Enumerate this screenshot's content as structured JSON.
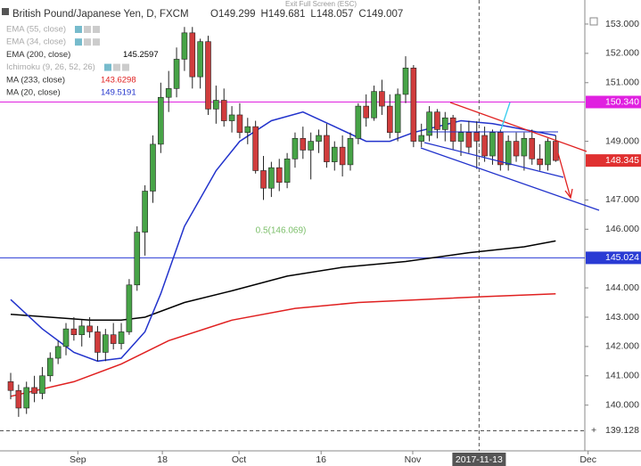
{
  "chart_data": {
    "type": "candlestick",
    "title": "British Pound/Japanese Yen, D, FXCM",
    "ohlc_header": [
      {
        "label": "O",
        "value": "149.299"
      },
      {
        "label": "H",
        "value": "149.681"
      },
      {
        "label": "L",
        "value": "148.057"
      },
      {
        "label": "C",
        "value": "149.007"
      }
    ],
    "exit_text": "Exit Full Screen (ESC)",
    "categories": [
      null,
      null,
      null,
      null,
      null,
      null,
      null,
      null,
      null,
      null,
      null,
      null,
      null,
      null,
      null,
      null,
      null,
      null,
      null,
      null,
      null,
      null,
      null,
      null,
      null,
      null,
      null,
      null,
      null,
      null,
      null,
      null,
      null,
      null,
      null,
      null,
      null,
      null,
      null,
      null,
      null,
      null,
      null,
      null,
      null,
      null,
      null,
      null,
      null,
      null,
      null,
      null,
      null,
      null,
      null,
      null,
      null,
      null,
      null,
      null,
      null,
      null,
      null,
      null,
      null,
      null,
      null,
      null,
      null,
      null
    ],
    "open": [
      140.8,
      140.5,
      139.9,
      140.6,
      140.4,
      141.0,
      141.6,
      142.0,
      142.6,
      142.4,
      142.7,
      142.5,
      141.8,
      142.4,
      142.1,
      142.5,
      144.1,
      145.9,
      147.3,
      148.9,
      150.5,
      150.8,
      151.8,
      152.7,
      151.2,
      152.4,
      150.1,
      150.4,
      149.7,
      149.9,
      149.3,
      149.5,
      148.0,
      147.4,
      148.1,
      147.6,
      148.4,
      149.1,
      148.7,
      149.0,
      149.2,
      148.3,
      148.8,
      148.2,
      149.1,
      150.2,
      149.8,
      150.7,
      150.2,
      149.3,
      150.6,
      151.5,
      149.0,
      149.2,
      150.0,
      149.4,
      149.8,
      149.0,
      149.3,
      149.299,
      149.2,
      148.5,
      149.3,
      148.2,
      149.0,
      148.5,
      149.1,
      148.4,
      148.2,
      149.0
    ],
    "high": [
      141.1,
      140.7,
      140.8,
      141.0,
      141.3,
      141.8,
      142.2,
      142.8,
      143.0,
      142.9,
      143.0,
      142.7,
      142.6,
      142.8,
      142.8,
      144.3,
      146.1,
      147.5,
      149.2,
      151.0,
      151.4,
      152.2,
      152.9,
      152.9,
      152.5,
      152.6,
      150.9,
      150.8,
      150.2,
      150.3,
      149.8,
      149.7,
      148.5,
      148.3,
      148.4,
      148.6,
      149.3,
      149.5,
      149.3,
      149.4,
      149.6,
      149.0,
      149.2,
      149.3,
      150.3,
      150.6,
      150.9,
      151.1,
      150.6,
      150.8,
      151.9,
      151.6,
      149.6,
      150.2,
      150.1,
      150.0,
      149.9,
      149.6,
      149.7,
      149.681,
      149.5,
      149.4,
      149.4,
      149.2,
      149.3,
      149.3,
      149.4,
      148.9,
      149.1,
      149.2
    ],
    "low": [
      140.2,
      139.6,
      139.7,
      140.1,
      140.2,
      140.8,
      141.4,
      141.7,
      142.2,
      142.0,
      142.3,
      141.5,
      141.5,
      141.9,
      141.9,
      142.4,
      143.9,
      145.1,
      146.9,
      148.6,
      150.0,
      150.5,
      151.4,
      150.8,
      150.8,
      149.9,
      149.6,
      149.5,
      149.3,
      149.1,
      148.9,
      147.9,
      147.0,
      147.1,
      147.3,
      147.4,
      148.1,
      148.4,
      147.7,
      148.6,
      148.1,
      148.0,
      147.8,
      148.0,
      148.9,
      149.5,
      149.7,
      149.9,
      149.1,
      149.0,
      150.3,
      148.8,
      148.8,
      149.0,
      149.1,
      149.0,
      148.7,
      148.5,
      148.6,
      148.057,
      148.3,
      148.2,
      148.0,
      148.0,
      148.3,
      148.0,
      148.2,
      148.0,
      148.0,
      148.3
    ],
    "close": [
      140.5,
      139.9,
      140.6,
      140.4,
      141.0,
      141.6,
      142.0,
      142.6,
      142.4,
      142.7,
      142.5,
      141.8,
      142.4,
      142.1,
      142.5,
      144.1,
      145.9,
      147.3,
      148.9,
      150.5,
      150.8,
      151.8,
      152.7,
      151.2,
      152.4,
      150.1,
      150.4,
      149.7,
      149.9,
      149.3,
      149.5,
      148.0,
      147.4,
      148.1,
      147.6,
      148.4,
      149.1,
      148.7,
      149.0,
      149.2,
      148.3,
      148.8,
      148.2,
      149.1,
      150.2,
      149.8,
      150.7,
      150.2,
      149.3,
      150.6,
      151.5,
      149.0,
      149.2,
      150.0,
      149.4,
      149.8,
      149.0,
      149.3,
      148.8,
      149.007,
      148.5,
      149.3,
      148.2,
      149.0,
      148.5,
      149.1,
      148.4,
      148.2,
      149.0,
      148.345
    ],
    "up_color": "#47a447",
    "down_color": "#d03c3c",
    "series": [
      {
        "name": "EMA (55, close)"
      },
      {
        "name": "EMA (34, close)"
      },
      {
        "name": "EMA (200, close)",
        "value_label": "145.2597",
        "color": "#000000",
        "x": [
          0,
          5,
          10,
          14,
          17,
          22,
          28,
          35,
          42,
          50,
          58,
          65,
          69
        ],
        "values": [
          143.1,
          143.0,
          142.9,
          142.9,
          143.0,
          143.5,
          143.9,
          144.4,
          144.7,
          144.9,
          145.2,
          145.4,
          145.6
        ]
      },
      {
        "name": "Ichimoku (9, 26, 52, 26)"
      },
      {
        "name": "MA (233, close)",
        "value_label": "143.6298",
        "color": "#e02020",
        "x": [
          0,
          8,
          14,
          20,
          28,
          36,
          44,
          52,
          60,
          69
        ],
        "values": [
          140.3,
          140.8,
          141.4,
          142.2,
          142.9,
          143.3,
          143.5,
          143.6,
          143.7,
          143.8
        ]
      },
      {
        "name": "MA (20, close)",
        "value_label": "149.5191",
        "color": "#2233cc",
        "x": [
          0,
          4,
          8,
          11,
          14,
          17,
          19,
          22,
          26,
          29,
          33,
          37,
          41,
          45,
          48,
          51,
          54,
          57,
          61,
          65,
          69
        ],
        "values": [
          143.6,
          142.6,
          141.8,
          141.5,
          141.6,
          142.5,
          143.8,
          146.1,
          148.0,
          149.0,
          149.7,
          150.0,
          149.5,
          149.0,
          149.0,
          149.3,
          149.5,
          149.7,
          149.6,
          149.4,
          149.2
        ]
      }
    ],
    "hlines": [
      {
        "value": 150.34,
        "label": "150.340",
        "color": "#e020e0"
      },
      {
        "value": 145.024,
        "label": "145.024",
        "color": "#2a3bd4"
      },
      {
        "value": 139.128,
        "label": "139.128",
        "color": "#444444",
        "dashed": true
      }
    ],
    "last_price": {
      "value": 148.345,
      "label": "148.345",
      "color": "#e03030"
    },
    "annotation": "0.5(146.069)",
    "crosshair": {
      "x": 59.3,
      "label": "2017-11-13"
    },
    "ylim": [
      138.44,
      153.82
    ],
    "yticks": [
      {
        "value": 153,
        "label": "153.000"
      },
      {
        "value": 152,
        "label": "152.000"
      },
      {
        "value": 151,
        "label": "151.000"
      },
      {
        "value": 149,
        "label": "149.000"
      },
      {
        "value": 147,
        "label": "147.000"
      },
      {
        "value": 146,
        "label": "146.000"
      },
      {
        "value": 144,
        "label": "144.000"
      },
      {
        "value": 143,
        "label": "143.000"
      },
      {
        "value": 142,
        "label": "142.000"
      },
      {
        "value": 141,
        "label": "141.000"
      },
      {
        "value": 140,
        "label": "140.000"
      }
    ],
    "xticks": [
      {
        "value": 8.5,
        "label": "Sep"
      },
      {
        "value": 19.2,
        "label": "18"
      },
      {
        "value": 28.9,
        "label": "Oct"
      },
      {
        "value": 39.3,
        "label": "16"
      },
      {
        "value": 50.9,
        "label": "Nov"
      },
      {
        "value": 73.1,
        "label": "Dec"
      }
    ]
  }
}
